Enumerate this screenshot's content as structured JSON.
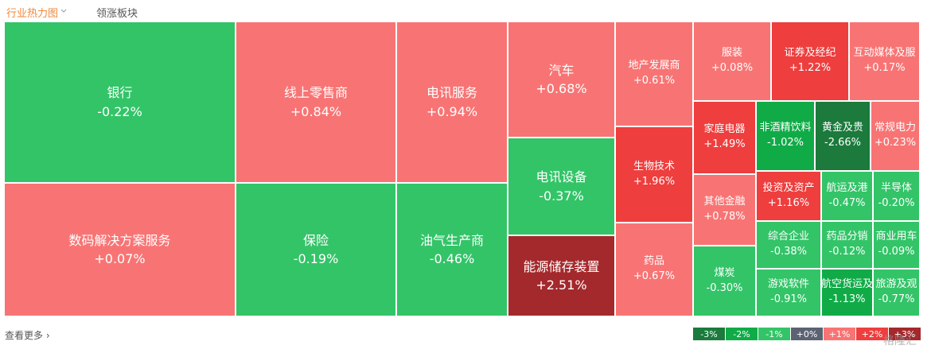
{
  "tabs": [
    {
      "label": "行业热力图",
      "active": true
    },
    {
      "label": "领涨板块",
      "active": false
    }
  ],
  "tiles": [
    {
      "name": "银行",
      "change": "-0.22%",
      "color": "#33c468"
    },
    {
      "name": "数码解决方案服务",
      "change": "+0.07%",
      "color": "#f87474"
    },
    {
      "name": "线上零售商",
      "change": "+0.84%",
      "color": "#f87474"
    },
    {
      "name": "保险",
      "change": "-0.19%",
      "color": "#33c468"
    },
    {
      "name": "电讯服务",
      "change": "+0.94%",
      "color": "#f87474"
    },
    {
      "name": "油气生产商",
      "change": "-0.46%",
      "color": "#33c468"
    },
    {
      "name": "汽车",
      "change": "+0.68%",
      "color": "#f87474"
    },
    {
      "name": "电讯设备",
      "change": "-0.37%",
      "color": "#33c468"
    },
    {
      "name": "能源储存装置",
      "change": "+2.51%",
      "color": "#a3292c"
    },
    {
      "name": "地产发展商",
      "change": "+0.61%",
      "color": "#f87474"
    },
    {
      "name": "生物技术",
      "change": "+1.96%",
      "color": "#ee3e3e"
    },
    {
      "name": "药品",
      "change": "+0.67%",
      "color": "#f87474"
    },
    {
      "name": "服装",
      "change": "+0.08%",
      "color": "#f87474"
    },
    {
      "name": "证券及经纪",
      "change": "+1.22%",
      "color": "#ee3e3e"
    },
    {
      "name": "互动媒体及服",
      "change": "+0.17%",
      "color": "#f87474"
    },
    {
      "name": "家庭电器",
      "change": "+1.49%",
      "color": "#ee3e3e"
    },
    {
      "name": "非酒精饮料",
      "change": "-1.02%",
      "color": "#10ab47"
    },
    {
      "name": "黄金及贵",
      "change": "-2.66%",
      "color": "#1b7a3c"
    },
    {
      "name": "常规电力",
      "change": "+0.23%",
      "color": "#f87474"
    },
    {
      "name": "其他金融",
      "change": "+0.78%",
      "color": "#f87474"
    },
    {
      "name": "煤炭",
      "change": "-0.30%",
      "color": "#33c468"
    },
    {
      "name": "投资及资产",
      "change": "+1.16%",
      "color": "#ee3e3e"
    },
    {
      "name": "综合企业",
      "change": "-0.38%",
      "color": "#33c468"
    },
    {
      "name": "游戏软件",
      "change": "-0.91%",
      "color": "#33c468"
    },
    {
      "name": "航运及港",
      "change": "-0.47%",
      "color": "#33c468"
    },
    {
      "name": "半导体",
      "change": "-0.20%",
      "color": "#33c468"
    },
    {
      "name": "药品分销",
      "change": "-0.12%",
      "color": "#33c468"
    },
    {
      "name": "商业用车",
      "change": "-0.09%",
      "color": "#33c468"
    },
    {
      "name": "航空货运及",
      "change": "-1.13%",
      "color": "#10ab47"
    },
    {
      "name": "旅游及观",
      "change": "-0.77%",
      "color": "#33c468"
    }
  ],
  "more": "查看更多",
  "legend": [
    {
      "label": "-3%",
      "color": "#1b7a3c"
    },
    {
      "label": "-2%",
      "color": "#10ab47"
    },
    {
      "label": "-1%",
      "color": "#33c468"
    },
    {
      "label": "+0%",
      "color": "#5b6272"
    },
    {
      "label": "+1%",
      "color": "#f87474"
    },
    {
      "label": "+2%",
      "color": "#ee3e3e"
    },
    {
      "label": "+3%",
      "color": "#a3292c"
    }
  ],
  "watermark": "格隆汇"
}
